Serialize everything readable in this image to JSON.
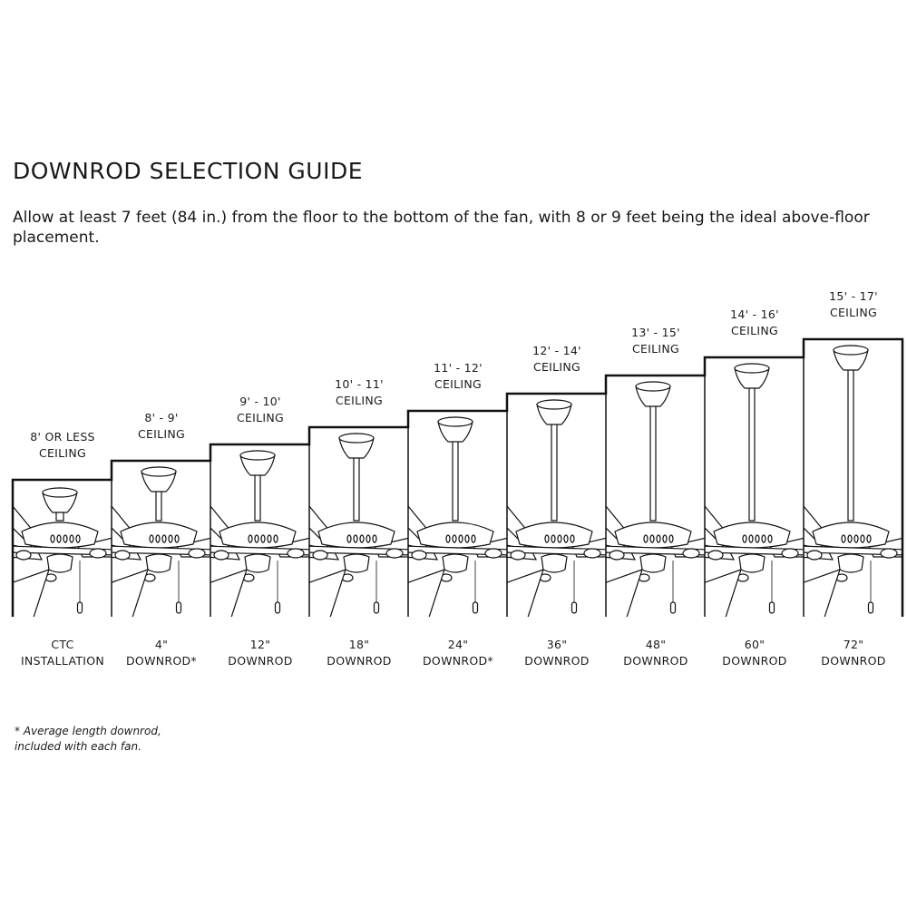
{
  "title": "DOWNROD SELECTION GUIDE",
  "intro": "Allow at least 7 feet (84 in.) from the floor to the bottom of the fan, with 8 or 9 feet being the ideal above-floor placement.",
  "panels": [
    {
      "ceiling_line1": "8' OR LESS",
      "ceiling_line2": "CEILING",
      "rod_line1": "CTC",
      "rod_line2": "INSTALLATION"
    },
    {
      "ceiling_line1": "8' - 9'",
      "ceiling_line2": "CEILING",
      "rod_line1": "4\"",
      "rod_line2": "DOWNROD*"
    },
    {
      "ceiling_line1": "9' - 10'",
      "ceiling_line2": "CEILING",
      "rod_line1": "12\"",
      "rod_line2": "DOWNROD"
    },
    {
      "ceiling_line1": "10' - 11'",
      "ceiling_line2": "CEILING",
      "rod_line1": "18\"",
      "rod_line2": "DOWNROD"
    },
    {
      "ceiling_line1": "11' - 12'",
      "ceiling_line2": "CEILING",
      "rod_line1": "24\"",
      "rod_line2": "DOWNROD*"
    },
    {
      "ceiling_line1": "12' - 14'",
      "ceiling_line2": "CEILING",
      "rod_line1": "36\"",
      "rod_line2": "DOWNROD"
    },
    {
      "ceiling_line1": "13' - 15'",
      "ceiling_line2": "CEILING",
      "rod_line1": "48\"",
      "rod_line2": "DOWNROD"
    },
    {
      "ceiling_line1": "14' - 16'",
      "ceiling_line2": "CEILING",
      "rod_line1": "60\"",
      "rod_line2": "DOWNROD"
    },
    {
      "ceiling_line1": "15' - 17'",
      "ceiling_line2": "CEILING",
      "rod_line1": "72\"",
      "rod_line2": "DOWNROD"
    }
  ],
  "footnote_line1": "* Average length downrod,",
  "footnote_line2": "included with each fan.",
  "colors": {
    "line": "#111111",
    "background": "#ffffff"
  }
}
